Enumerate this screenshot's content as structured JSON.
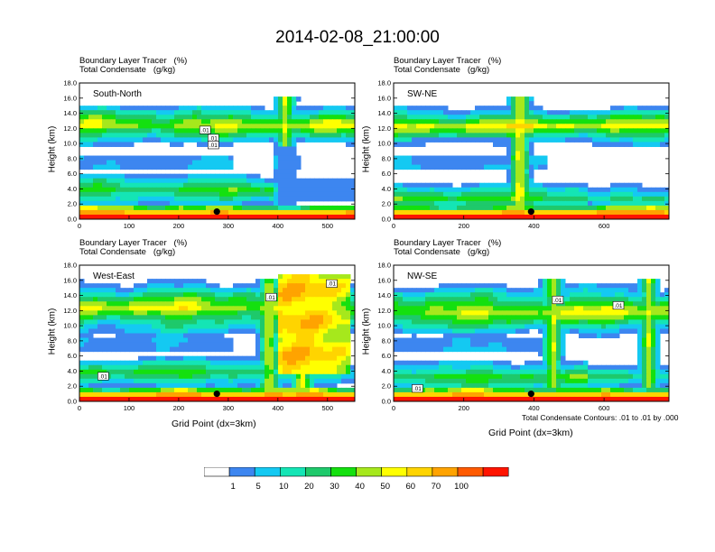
{
  "title": "2014-02-08_21:00:00",
  "colors": [
    "#ffffff",
    "#3d86f0",
    "#14c9f2",
    "#14e5b5",
    "#1ec96b",
    "#14e00f",
    "#a6e81c",
    "#ffff00",
    "#ffd400",
    "#ffa300",
    "#ff5a00",
    "#ff1400"
  ],
  "chart_data": [
    {
      "type": "heatmap",
      "title_lines": [
        "Boundary Layer Tracer   (%)",
        "Total Condensate   (g/kg)"
      ],
      "panel_label": "South-North",
      "ylabel": "Height (km)",
      "xlabel": "",
      "xlim": [
        0,
        555
      ],
      "ylim": [
        0,
        18
      ],
      "xticks": [
        0,
        100,
        200,
        300,
        400,
        500
      ],
      "yticks": [
        "0.0",
        "2.0",
        "4.0",
        "6.0",
        "8.0",
        "10.0",
        "12.0",
        "14.0",
        "16.0",
        "18.0"
      ],
      "marker": {
        "x": 277,
        "y": 1.0
      },
      "contour_labels": [
        ".01",
        ".01",
        ".01"
      ]
    },
    {
      "type": "heatmap",
      "title_lines": [
        "Boundary Layer Tracer   (%)",
        "Total Condensate   (g/kg)"
      ],
      "panel_label": "SW-NE",
      "ylabel": "Height (km)",
      "xlabel": "",
      "xlim": [
        0,
        785
      ],
      "ylim": [
        0,
        18
      ],
      "xticks": [
        0,
        200,
        400,
        600
      ],
      "yticks": [
        "0.0",
        "2.0",
        "4.0",
        "6.0",
        "8.0",
        "10.0",
        "12.0",
        "14.0",
        "16.0",
        "18.0"
      ],
      "marker": {
        "x": 392,
        "y": 1.0
      },
      "contour_labels": []
    },
    {
      "type": "heatmap",
      "title_lines": [
        "Boundary Layer Tracer   (%)",
        "Total Condensate   (g/kg)"
      ],
      "panel_label": "West-East",
      "ylabel": "Height (km)",
      "xlabel": "Grid Point (dx=3km)",
      "xlim": [
        0,
        555
      ],
      "ylim": [
        0,
        18
      ],
      "xticks": [
        0,
        100,
        200,
        300,
        400,
        500
      ],
      "yticks": [
        "0.0",
        "2.0",
        "4.0",
        "6.0",
        "8.0",
        "10.0",
        "12.0",
        "14.0",
        "16.0",
        "18.0"
      ],
      "marker": {
        "x": 277,
        "y": 1.0
      },
      "contour_labels": [
        ".01",
        ".01",
        ".01"
      ]
    },
    {
      "type": "heatmap",
      "title_lines": [
        "Boundary Layer Tracer   (%)",
        "Total Condensate   (g/kg)"
      ],
      "panel_label": "NW-SE",
      "ylabel": "Height (km)",
      "xlabel": "Grid Point (dx=3km)",
      "footnote": "Total Condensate Contours: .01 to .01 by .000",
      "xlim": [
        0,
        785
      ],
      "ylim": [
        0,
        18
      ],
      "xticks": [
        0,
        200,
        400,
        600
      ],
      "yticks": [
        "0.0",
        "2.0",
        "4.0",
        "6.0",
        "8.0",
        "10.0",
        "12.0",
        "14.0",
        "16.0",
        "18.0"
      ],
      "marker": {
        "x": 392,
        "y": 1.0
      },
      "contour_labels": [
        ".01",
        ".01",
        ".01"
      ]
    }
  ],
  "colorbar": {
    "labels": [
      "1",
      "5",
      "10",
      "20",
      "30",
      "40",
      "50",
      "60",
      "70",
      "100"
    ]
  }
}
